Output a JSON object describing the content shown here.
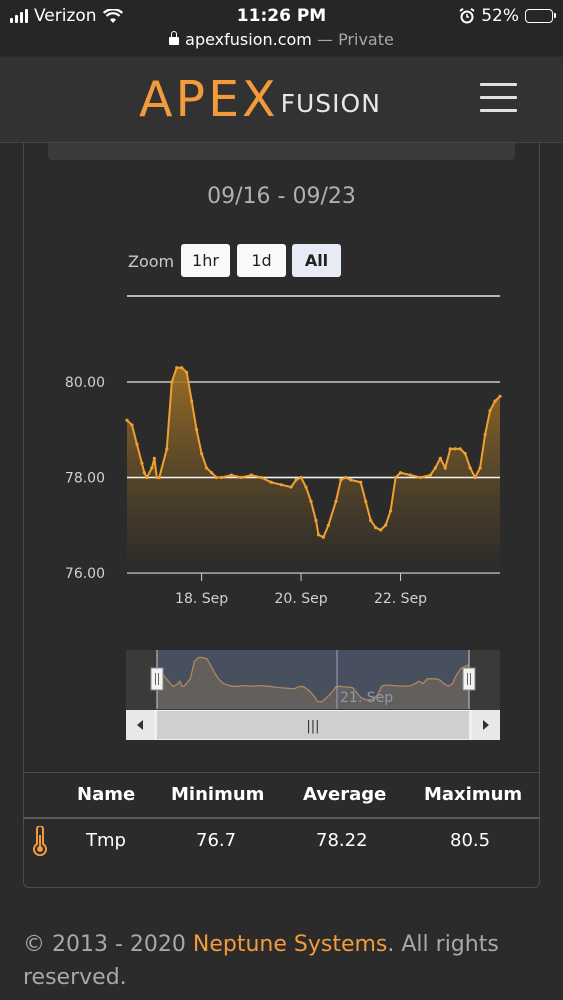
{
  "status_bar": {
    "carrier": "Verizon",
    "time": "11:26 PM",
    "battery": "52%",
    "battery_level": 0.52
  },
  "browser": {
    "url": "apexfusion.com",
    "separator": " — ",
    "mode": "Private"
  },
  "header": {
    "logo_main": "APEX",
    "logo_sub": "FUSION",
    "menu_icon": "hamburger-icon"
  },
  "chart": {
    "date_range": "09/16 - 09/23",
    "zoom_label": "Zoom",
    "zoom_buttons": [
      "1hr",
      "1d",
      "All"
    ],
    "zoom_selected": "All",
    "navigator_label": "21. Sep",
    "scrollbar_grip": "|||"
  },
  "chart_data": {
    "type": "area",
    "series": [
      {
        "values": [
          [
            16.5,
            79.2
          ],
          [
            16.6,
            79.1
          ],
          [
            16.7,
            78.7
          ],
          [
            16.8,
            78.3
          ],
          [
            16.85,
            78.1
          ],
          [
            16.9,
            78.0
          ],
          [
            17.0,
            78.2
          ],
          [
            17.05,
            78.4
          ],
          [
            17.1,
            78.0
          ],
          [
            17.15,
            78.0
          ],
          [
            17.3,
            78.6
          ],
          [
            17.4,
            80.0
          ],
          [
            17.5,
            80.3
          ],
          [
            17.6,
            80.3
          ],
          [
            17.7,
            80.2
          ],
          [
            17.8,
            79.6
          ],
          [
            17.9,
            79.0
          ],
          [
            18.0,
            78.5
          ],
          [
            18.1,
            78.2
          ],
          [
            18.2,
            78.1
          ],
          [
            18.3,
            78.0
          ],
          [
            18.4,
            78.0
          ],
          [
            18.6,
            78.05
          ],
          [
            18.8,
            78.0
          ],
          [
            19.0,
            78.05
          ],
          [
            19.2,
            78.0
          ],
          [
            19.4,
            77.9
          ],
          [
            19.6,
            77.85
          ],
          [
            19.8,
            77.8
          ],
          [
            19.9,
            77.95
          ],
          [
            20.0,
            78.0
          ],
          [
            20.1,
            77.8
          ],
          [
            20.2,
            77.5
          ],
          [
            20.3,
            77.1
          ],
          [
            20.35,
            76.8
          ],
          [
            20.45,
            76.75
          ],
          [
            20.55,
            77.0
          ],
          [
            20.7,
            77.5
          ],
          [
            20.8,
            77.95
          ],
          [
            20.9,
            78.0
          ],
          [
            21.0,
            77.95
          ],
          [
            21.2,
            77.9
          ],
          [
            21.3,
            77.5
          ],
          [
            21.4,
            77.1
          ],
          [
            21.5,
            76.95
          ],
          [
            21.6,
            76.9
          ],
          [
            21.7,
            77.0
          ],
          [
            21.8,
            77.3
          ],
          [
            21.9,
            78.0
          ],
          [
            22.0,
            78.1
          ],
          [
            22.2,
            78.05
          ],
          [
            22.4,
            78.0
          ],
          [
            22.6,
            78.05
          ],
          [
            22.7,
            78.2
          ],
          [
            22.8,
            78.4
          ],
          [
            22.9,
            78.2
          ],
          [
            23.0,
            78.6
          ],
          [
            23.1,
            78.6
          ],
          [
            23.2,
            78.6
          ],
          [
            23.3,
            78.5
          ],
          [
            23.4,
            78.2
          ],
          [
            23.5,
            78.0
          ],
          [
            23.6,
            78.2
          ],
          [
            23.7,
            78.9
          ],
          [
            23.8,
            79.4
          ],
          [
            23.9,
            79.6
          ],
          [
            24.0,
            79.7
          ]
        ]
      }
    ],
    "xlabel": "",
    "ylabel": "",
    "y_ticks": [
      "76.00",
      "78.00",
      "80.00"
    ],
    "x_ticks": [
      "18. Sep",
      "20. Sep",
      "22. Sep"
    ],
    "x_tick_values": [
      18,
      20,
      22
    ],
    "ylim": [
      76,
      80.5
    ],
    "xlim": [
      16.5,
      24.0
    ],
    "reference_line": 78.0,
    "color": "#f0a030"
  },
  "table": {
    "headers": [
      "Name",
      "Minimum",
      "Average",
      "Maximum"
    ],
    "rows": [
      {
        "icon": "thermometer-icon",
        "name": "Tmp",
        "minimum": "76.7",
        "average": "78.22",
        "maximum": "80.5"
      }
    ]
  },
  "footer": {
    "prefix": "© 2013 - 2020 ",
    "brand": "Neptune Systems",
    "suffix": ". All rights reserved."
  },
  "colors": {
    "accent": "#f39a3c",
    "background": "#2b2b2b",
    "line": "#f0a030"
  }
}
